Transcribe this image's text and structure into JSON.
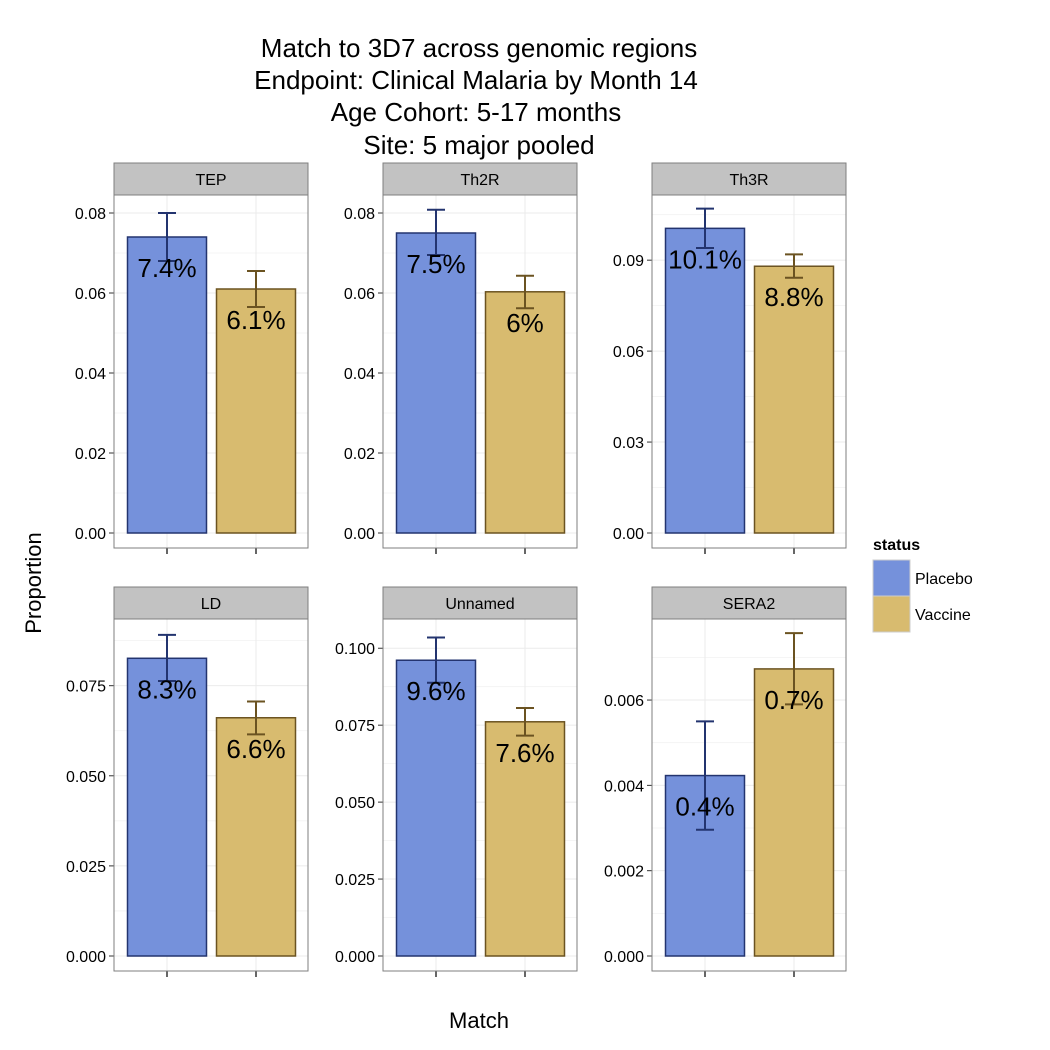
{
  "chart_data": {
    "type": "bar",
    "title_lines": [
      "Match to 3D7 across genomic regions",
      "Endpoint: Clinical Malaria by Month 14",
      "Age Cohort: 5-17 months",
      "Site: 5 major pooled"
    ],
    "xlabel": "Match",
    "ylabel": "Proportion",
    "grid": true,
    "legend": {
      "title": "status",
      "placement": "right",
      "entries": [
        {
          "name": "Placebo",
          "fill": "#7591db",
          "stroke": "#23346f"
        },
        {
          "name": "Vaccine",
          "fill": "#d8bb6f",
          "stroke": "#6b5321"
        }
      ]
    },
    "panels": [
      {
        "name": "TEP",
        "ylim": [
          0,
          0.0845
        ],
        "y_ticks": [
          "0.00",
          "0.02",
          "0.04",
          "0.06",
          "0.08"
        ],
        "series": [
          {
            "name": "Placebo",
            "value": 0.074,
            "err_low": 0.068,
            "err_high": 0.08,
            "label": "7.4%"
          },
          {
            "name": "Vaccine",
            "value": 0.061,
            "err_low": 0.0565,
            "err_high": 0.0655,
            "label": "6.1%"
          }
        ]
      },
      {
        "name": "Th2R",
        "ylim": [
          0,
          0.0845
        ],
        "y_ticks": [
          "0.00",
          "0.02",
          "0.04",
          "0.06",
          "0.08"
        ],
        "series": [
          {
            "name": "Placebo",
            "value": 0.075,
            "err_low": 0.0695,
            "err_high": 0.0808,
            "label": "7.5%"
          },
          {
            "name": "Vaccine",
            "value": 0.0603,
            "err_low": 0.0562,
            "err_high": 0.0643,
            "label": "6%"
          }
        ]
      },
      {
        "name": "Th3R",
        "ylim": [
          0,
          0.1115
        ],
        "y_ticks": [
          "0.00",
          "0.03",
          "0.06",
          "0.09"
        ],
        "series": [
          {
            "name": "Placebo",
            "value": 0.1005,
            "err_low": 0.094,
            "err_high": 0.107,
            "label": "10.1%"
          },
          {
            "name": "Vaccine",
            "value": 0.088,
            "err_low": 0.0842,
            "err_high": 0.0919,
            "label": "8.8%"
          }
        ]
      },
      {
        "name": "LD",
        "ylim": [
          0,
          0.0935
        ],
        "y_ticks": [
          "0.000",
          "0.025",
          "0.050",
          "0.075"
        ],
        "series": [
          {
            "name": "Placebo",
            "value": 0.0826,
            "err_low": 0.0763,
            "err_high": 0.0891,
            "label": "8.3%"
          },
          {
            "name": "Vaccine",
            "value": 0.0661,
            "err_low": 0.0615,
            "err_high": 0.0706,
            "label": "6.6%"
          }
        ]
      },
      {
        "name": "Unnamed",
        "ylim": [
          0,
          0.1095
        ],
        "y_ticks": [
          "0.000",
          "0.025",
          "0.050",
          "0.075",
          "0.100"
        ],
        "series": [
          {
            "name": "Placebo",
            "value": 0.0961,
            "err_low": 0.0888,
            "err_high": 0.1035,
            "label": "9.6%"
          },
          {
            "name": "Vaccine",
            "value": 0.0761,
            "err_low": 0.0716,
            "err_high": 0.0806,
            "label": "7.6%"
          }
        ]
      },
      {
        "name": "SERA2",
        "ylim": [
          0,
          0.0079
        ],
        "y_ticks": [
          "0.000",
          "0.002",
          "0.004",
          "0.006"
        ],
        "series": [
          {
            "name": "Placebo",
            "value": 0.00423,
            "err_low": 0.00296,
            "err_high": 0.0055,
            "label": "0.4%"
          },
          {
            "name": "Vaccine",
            "value": 0.00673,
            "err_low": 0.0059,
            "err_high": 0.00757,
            "label": "0.7%"
          }
        ]
      }
    ]
  }
}
